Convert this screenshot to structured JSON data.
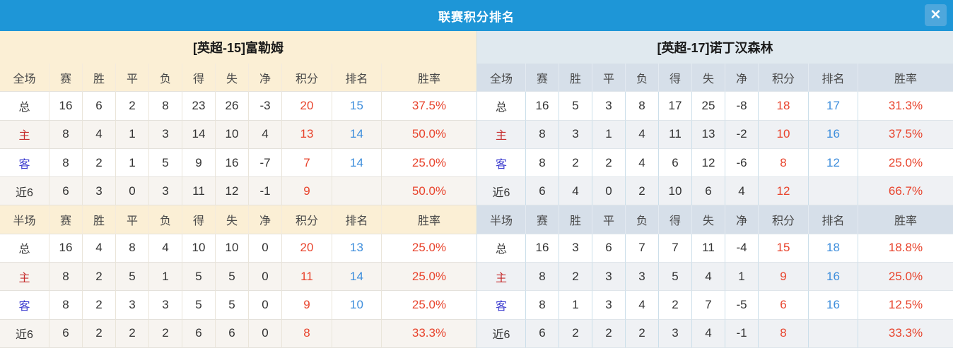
{
  "window": {
    "title": "联赛积分排名",
    "close_icon": "✕"
  },
  "colors": {
    "titlebar_blue": "#1E96D7",
    "close_button_blue": "#4EA7DC",
    "left_theme_cream": "#FBEFD5",
    "right_theme_blue_band": "#E0E9EF",
    "right_theme_blue_header": "#D6DFE9",
    "points_red": "#E8432C",
    "rank_blue": "#3E8EDC",
    "home_label_red": "#C52B2B",
    "away_label_blue": "#3B3BCF"
  },
  "sections": {
    "full_label": "全场",
    "half_label": "半场"
  },
  "stat_columns": [
    "赛",
    "胜",
    "平",
    "负",
    "得",
    "失",
    "净",
    "积分",
    "排名",
    "胜率"
  ],
  "teams": [
    {
      "name": "[英超-15]富勒姆",
      "theme": "cream",
      "full_rows": [
        {
          "label": "总",
          "type": "total",
          "stats": [
            "16",
            "6",
            "2",
            "8",
            "23",
            "26",
            "-3"
          ],
          "points": "20",
          "rank": "15",
          "win_rate": "37.5%"
        },
        {
          "label": "主",
          "type": "home",
          "stats": [
            "8",
            "4",
            "1",
            "3",
            "14",
            "10",
            "4"
          ],
          "points": "13",
          "rank": "14",
          "win_rate": "50.0%"
        },
        {
          "label": "客",
          "type": "away",
          "stats": [
            "8",
            "2",
            "1",
            "5",
            "9",
            "16",
            "-7"
          ],
          "points": "7",
          "rank": "14",
          "win_rate": "25.0%"
        },
        {
          "label": "近6",
          "type": "recent",
          "stats": [
            "6",
            "3",
            "0",
            "3",
            "11",
            "12",
            "-1"
          ],
          "points": "9",
          "rank": "",
          "win_rate": "50.0%"
        }
      ],
      "half_rows": [
        {
          "label": "总",
          "type": "total",
          "stats": [
            "16",
            "4",
            "8",
            "4",
            "10",
            "10",
            "0"
          ],
          "points": "20",
          "rank": "13",
          "win_rate": "25.0%"
        },
        {
          "label": "主",
          "type": "home",
          "stats": [
            "8",
            "2",
            "5",
            "1",
            "5",
            "5",
            "0"
          ],
          "points": "11",
          "rank": "14",
          "win_rate": "25.0%"
        },
        {
          "label": "客",
          "type": "away",
          "stats": [
            "8",
            "2",
            "3",
            "3",
            "5",
            "5",
            "0"
          ],
          "points": "9",
          "rank": "10",
          "win_rate": "25.0%"
        },
        {
          "label": "近6",
          "type": "recent",
          "stats": [
            "6",
            "2",
            "2",
            "2",
            "6",
            "6",
            "0"
          ],
          "points": "8",
          "rank": "",
          "win_rate": "33.3%"
        }
      ]
    },
    {
      "name": "[英超-17]诺丁汉森林",
      "theme": "blue",
      "full_rows": [
        {
          "label": "总",
          "type": "total",
          "stats": [
            "16",
            "5",
            "3",
            "8",
            "17",
            "25",
            "-8"
          ],
          "points": "18",
          "rank": "17",
          "win_rate": "31.3%"
        },
        {
          "label": "主",
          "type": "home",
          "stats": [
            "8",
            "3",
            "1",
            "4",
            "11",
            "13",
            "-2"
          ],
          "points": "10",
          "rank": "16",
          "win_rate": "37.5%"
        },
        {
          "label": "客",
          "type": "away",
          "stats": [
            "8",
            "2",
            "2",
            "4",
            "6",
            "12",
            "-6"
          ],
          "points": "8",
          "rank": "12",
          "win_rate": "25.0%"
        },
        {
          "label": "近6",
          "type": "recent",
          "stats": [
            "6",
            "4",
            "0",
            "2",
            "10",
            "6",
            "4"
          ],
          "points": "12",
          "rank": "",
          "win_rate": "66.7%"
        }
      ],
      "half_rows": [
        {
          "label": "总",
          "type": "total",
          "stats": [
            "16",
            "3",
            "6",
            "7",
            "7",
            "11",
            "-4"
          ],
          "points": "15",
          "rank": "18",
          "win_rate": "18.8%"
        },
        {
          "label": "主",
          "type": "home",
          "stats": [
            "8",
            "2",
            "3",
            "3",
            "5",
            "4",
            "1"
          ],
          "points": "9",
          "rank": "16",
          "win_rate": "25.0%"
        },
        {
          "label": "客",
          "type": "away",
          "stats": [
            "8",
            "1",
            "3",
            "4",
            "2",
            "7",
            "-5"
          ],
          "points": "6",
          "rank": "16",
          "win_rate": "12.5%"
        },
        {
          "label": "近6",
          "type": "recent",
          "stats": [
            "6",
            "2",
            "2",
            "2",
            "3",
            "4",
            "-1"
          ],
          "points": "8",
          "rank": "",
          "win_rate": "33.3%"
        }
      ]
    }
  ]
}
